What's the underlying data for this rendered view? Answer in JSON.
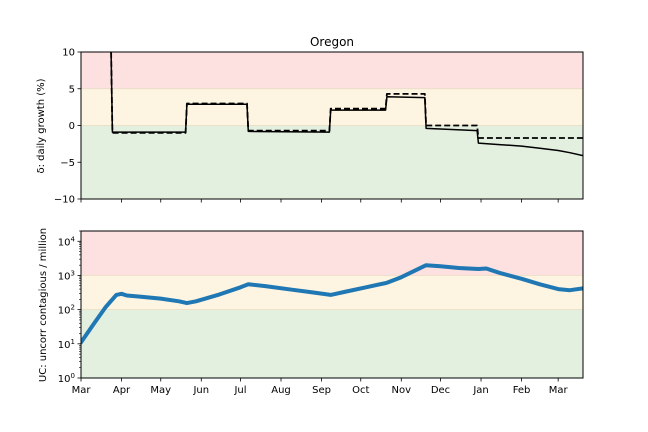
{
  "chart_data": [
    {
      "type": "line",
      "title": "Oregon",
      "ylabel": "δ: daily growth (%)",
      "ylim": [
        -10,
        10
      ],
      "yscale": "linear",
      "yticks": [
        -10,
        -5,
        0,
        5,
        10
      ],
      "xlim": [
        "2020-03-01",
        "2021-03-20"
      ],
      "bands": [
        {
          "from": 5,
          "to": 10,
          "color": "#fde0e0"
        },
        {
          "from": 0,
          "to": 5,
          "color": "#fdf4e1"
        },
        {
          "from": -10,
          "to": 0,
          "color": "#e3f0e0"
        }
      ],
      "series": [
        {
          "style": "solid",
          "color": "#000000",
          "points": [
            [
              "2020-03-24",
              10
            ],
            [
              "2020-03-25",
              -0.9
            ],
            [
              "2020-05-20",
              -0.9
            ],
            [
              "2020-05-21",
              2.9
            ],
            [
              "2020-07-06",
              2.9
            ],
            [
              "2020-07-07",
              -0.8
            ],
            [
              "2020-09-07",
              -0.9
            ],
            [
              "2020-09-08",
              2.1
            ],
            [
              "2020-10-20",
              2.1
            ],
            [
              "2020-10-21",
              3.9
            ],
            [
              "2020-11-19",
              3.8
            ],
            [
              "2020-11-20",
              -0.4
            ],
            [
              "2020-12-29",
              -0.7
            ],
            [
              "2020-12-30",
              -2.4
            ],
            [
              "2021-01-15",
              -2.6
            ],
            [
              "2021-02-01",
              -2.8
            ],
            [
              "2021-02-15",
              -3.1
            ],
            [
              "2021-03-01",
              -3.4
            ],
            [
              "2021-03-10",
              -3.7
            ],
            [
              "2021-03-20",
              -4.1
            ]
          ]
        },
        {
          "style": "dashed",
          "color": "#000000",
          "points": [
            [
              "2020-03-24",
              10
            ],
            [
              "2020-03-25",
              -1.0
            ],
            [
              "2020-05-20",
              -1.0
            ],
            [
              "2020-05-21",
              3.0
            ],
            [
              "2020-07-06",
              3.0
            ],
            [
              "2020-07-07",
              -0.7
            ],
            [
              "2020-09-07",
              -0.7
            ],
            [
              "2020-09-08",
              2.3
            ],
            [
              "2020-10-20",
              2.3
            ],
            [
              "2020-10-21",
              4.3
            ],
            [
              "2020-11-19",
              4.3
            ],
            [
              "2020-11-20",
              0.0
            ],
            [
              "2020-12-29",
              0.0
            ],
            [
              "2020-12-30",
              -1.7
            ],
            [
              "2021-03-20",
              -1.7
            ]
          ]
        }
      ]
    },
    {
      "type": "line",
      "ylabel": "UC: uncorr contagious / million",
      "yscale": "log",
      "ylim": [
        1,
        20000
      ],
      "yticks": [
        {
          "value": 1,
          "base": "10",
          "exp": "0"
        },
        {
          "value": 10,
          "base": "10",
          "exp": "1"
        },
        {
          "value": 100,
          "base": "10",
          "exp": "2"
        },
        {
          "value": 1000,
          "base": "10",
          "exp": "3"
        },
        {
          "value": 10000,
          "base": "10",
          "exp": "4"
        }
      ],
      "xlim": [
        "2020-03-01",
        "2021-03-20"
      ],
      "xticks": [
        {
          "date": "2020-03-01",
          "label": "Mar"
        },
        {
          "date": "2020-04-01",
          "label": "Apr"
        },
        {
          "date": "2020-05-01",
          "label": "May"
        },
        {
          "date": "2020-06-01",
          "label": "Jun"
        },
        {
          "date": "2020-07-01",
          "label": "Jul"
        },
        {
          "date": "2020-08-01",
          "label": "Aug"
        },
        {
          "date": "2020-09-01",
          "label": "Sep"
        },
        {
          "date": "2020-10-01",
          "label": "Oct"
        },
        {
          "date": "2020-11-01",
          "label": "Nov"
        },
        {
          "date": "2020-12-01",
          "label": "Dec"
        },
        {
          "date": "2021-01-01",
          "label": "Jan"
        },
        {
          "date": "2021-02-01",
          "label": "Feb"
        },
        {
          "date": "2021-03-01",
          "label": "Mar"
        }
      ],
      "bands": [
        {
          "from": 1000,
          "to": 20000,
          "color": "#fde0e0"
        },
        {
          "from": 100,
          "to": 1000,
          "color": "#fdf4e1"
        },
        {
          "from": 1,
          "to": 100,
          "color": "#e3f0e0"
        }
      ],
      "series": [
        {
          "style": "solid",
          "color": "#1f77b4",
          "points": [
            [
              "2020-03-01",
              11
            ],
            [
              "2020-03-10",
              35
            ],
            [
              "2020-03-20",
              120
            ],
            [
              "2020-03-28",
              270
            ],
            [
              "2020-04-01",
              290
            ],
            [
              "2020-04-05",
              260
            ],
            [
              "2020-04-15",
              240
            ],
            [
              "2020-05-01",
              210
            ],
            [
              "2020-05-15",
              175
            ],
            [
              "2020-05-21",
              155
            ],
            [
              "2020-05-28",
              175
            ],
            [
              "2020-06-15",
              280
            ],
            [
              "2020-07-01",
              450
            ],
            [
              "2020-07-07",
              550
            ],
            [
              "2020-07-20",
              490
            ],
            [
              "2020-08-10",
              380
            ],
            [
              "2020-08-25",
              320
            ],
            [
              "2020-09-08",
              270
            ],
            [
              "2020-09-20",
              340
            ],
            [
              "2020-10-05",
              450
            ],
            [
              "2020-10-21",
              610
            ],
            [
              "2020-11-01",
              890
            ],
            [
              "2020-11-20",
              2000
            ],
            [
              "2020-12-01",
              1850
            ],
            [
              "2020-12-15",
              1650
            ],
            [
              "2020-12-30",
              1550
            ],
            [
              "2021-01-05",
              1600
            ],
            [
              "2021-01-15",
              1200
            ],
            [
              "2021-02-01",
              800
            ],
            [
              "2021-02-15",
              550
            ],
            [
              "2021-03-01",
              400
            ],
            [
              "2021-03-10",
              370
            ],
            [
              "2021-03-20",
              420
            ]
          ]
        }
      ]
    }
  ]
}
